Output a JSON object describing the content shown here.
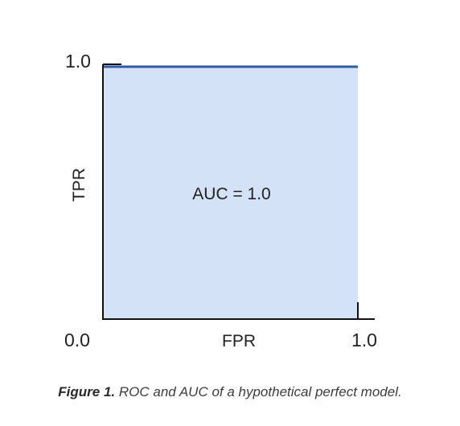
{
  "chart_data": {
    "type": "area",
    "series": [
      {
        "x": [
          0.0,
          0.0,
          1.0
        ],
        "y": [
          0.0,
          1.0,
          1.0
        ]
      }
    ],
    "xlabel": "FPR",
    "ylabel": "TPR",
    "xlim": [
      0.0,
      1.0
    ],
    "ylim": [
      0.0,
      1.0
    ],
    "x_tick_labels": [
      "0.0",
      "1.0"
    ],
    "y_tick_labels": [
      "0.0",
      "1.0"
    ],
    "annotations": [
      "AUC = 1.0"
    ],
    "grid": false,
    "legend": "none"
  },
  "caption": {
    "label": "Figure 1.",
    "text": "ROC and AUC of a hypothetical perfect model."
  },
  "colors": {
    "fill": "#d3e2f6",
    "curve": "#2e5aa8",
    "axis": "#111111"
  }
}
